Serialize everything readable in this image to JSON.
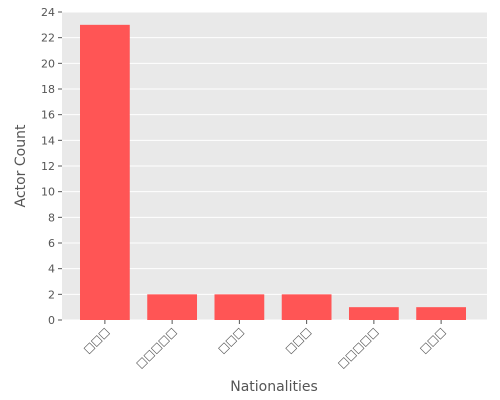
{
  "chart_data": {
    "type": "bar",
    "title": "",
    "xlabel": "Nationalities",
    "ylabel": "Actor Count",
    "categories": [
      "□□□",
      "□□□□□",
      "□□□",
      "□□□",
      "□□□□□",
      "□□□"
    ],
    "values": [
      23,
      2,
      2,
      2,
      1,
      1
    ],
    "ylim": [
      0,
      24
    ],
    "yticks": [
      0,
      2,
      4,
      6,
      8,
      10,
      12,
      14,
      16,
      18,
      20,
      22,
      24
    ],
    "grid": true,
    "bar_color": "#ff5555",
    "background_color": "#e9e9e9",
    "grid_color": "#ffffff"
  }
}
